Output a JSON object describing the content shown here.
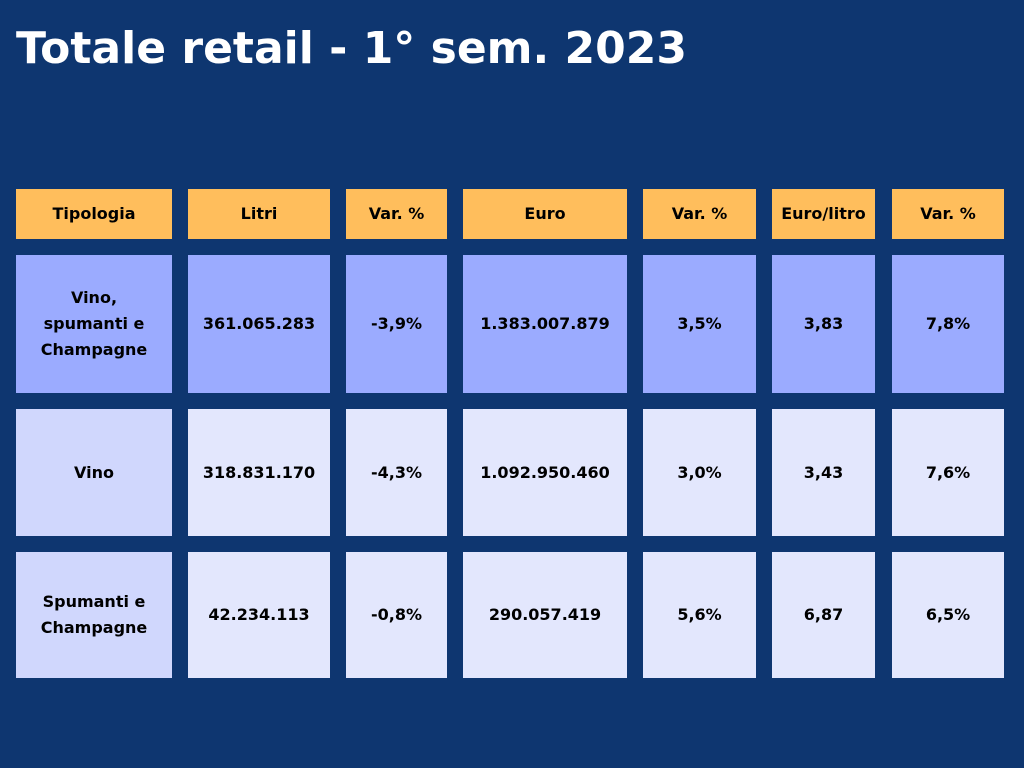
{
  "title": "Totale retail - 1° sem. 2023",
  "colors": {
    "background": "#0e3670",
    "header": "#ffbe5c",
    "row_total": "#9babff",
    "row_label": "#d0d7fd",
    "row_cell": "#e3e7fd",
    "title_text": "#ffffff"
  },
  "chart_data": {
    "type": "table",
    "columns": [
      "Tipologia",
      "Litri",
      "Var. %",
      "Euro",
      "Var. %",
      "Euro/litro",
      "Var. %"
    ],
    "rows": [
      [
        "Vino,\nspumanti e\nChampagne",
        "361.065.283",
        "-3,9%",
        "1.383.007.879",
        "3,5%",
        "3,83",
        "7,8%"
      ],
      [
        "Vino",
        "318.831.170",
        "-4,3%",
        "1.092.950.460",
        "3,0%",
        "3,43",
        "7,6%"
      ],
      [
        "Spumanti e\nChampagne",
        "42.234.113",
        "-0,8%",
        "290.057.419",
        "5,6%",
        "6,87",
        "6,5%"
      ]
    ]
  }
}
